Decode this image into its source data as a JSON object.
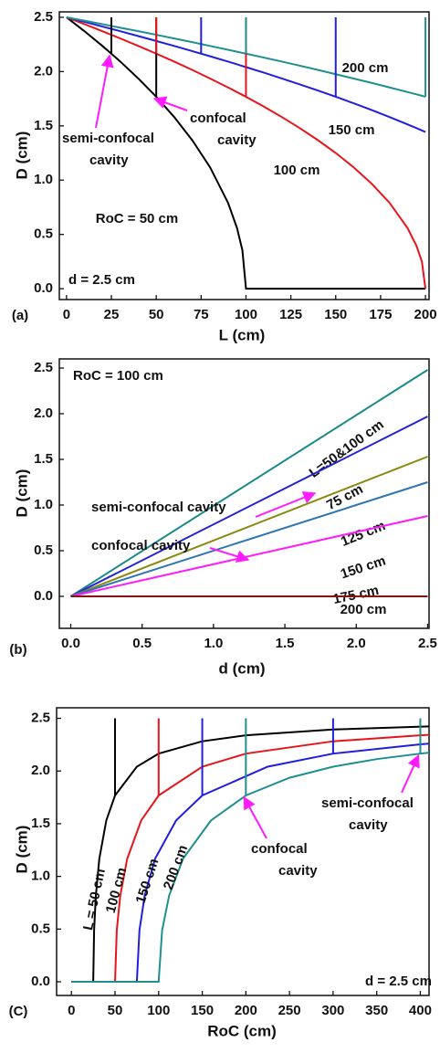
{
  "chart_data": [
    {
      "type": "line",
      "panel_label": "(a)",
      "x_label": "L (cm)",
      "y_label": "D (cm)",
      "annotations": [
        {
          "lines": [
            "semi-confocal",
            "cavity"
          ]
        },
        {
          "lines": [
            "confocal",
            "cavity"
          ]
        },
        {
          "lines": [
            "d = 2.5 cm"
          ]
        }
      ],
      "xlim": [
        -4,
        202
      ],
      "ylim": [
        -0.1,
        2.55
      ],
      "xticks": [
        0,
        25,
        50,
        75,
        100,
        125,
        150,
        175,
        200
      ],
      "yticks": [
        {
          "value": 0,
          "label": "0.0"
        },
        0.5,
        {
          "value": 1,
          "label": "1.0"
        },
        1.5,
        {
          "value": 2,
          "label": "2.0"
        },
        2.5
      ],
      "x": [
        0,
        10,
        20,
        30,
        40,
        50,
        60,
        70,
        80,
        90,
        95,
        98,
        100,
        110,
        120,
        130,
        140,
        150,
        160,
        170,
        180,
        190,
        195,
        198,
        200
      ],
      "series": [
        {
          "name": "RoC = 50 cm",
          "color": "#000000",
          "values": [
            2.5,
            2.372,
            2.236,
            2.092,
            1.936,
            1.768,
            1.581,
            1.369,
            1.118,
            0.791,
            0.559,
            0.354,
            0,
            0,
            0,
            0,
            0,
            0,
            0,
            0,
            0,
            0,
            0,
            0,
            0
          ]
        },
        {
          "name": "100 cm",
          "color": "#e8141b",
          "values": [
            2.5,
            2.437,
            2.372,
            2.305,
            2.236,
            2.165,
            2.092,
            2.016,
            1.936,
            1.854,
            1.811,
            1.785,
            1.768,
            1.677,
            1.581,
            1.479,
            1.369,
            1.25,
            1.118,
            0.968,
            0.791,
            0.559,
            0.395,
            0.25,
            0
          ]
        },
        {
          "name": "150 cm",
          "color": "#1f1fe0",
          "values": [
            2.5,
            2.458,
            2.415,
            2.372,
            2.327,
            2.282,
            2.236,
            2.189,
            2.141,
            2.092,
            2.067,
            2.051,
            2.041,
            1.99,
            1.936,
            1.882,
            1.826,
            1.768,
            1.708,
            1.646,
            1.581,
            1.514,
            1.479,
            1.458,
            1.443
          ]
        },
        {
          "name": "200 cm",
          "color": "#1f8f8f",
          "values": [
            2.5,
            2.469,
            2.437,
            2.404,
            2.372,
            2.339,
            2.305,
            2.271,
            2.236,
            2.201,
            2.183,
            2.172,
            2.165,
            2.129,
            2.092,
            2.054,
            2.016,
            1.976,
            1.936,
            1.896,
            1.854,
            1.811,
            1.79,
            1.777,
            1.768
          ]
        }
      ],
      "markers": [
        {
          "x": 25,
          "from": 2.165,
          "to": 2.5,
          "color": "#000000"
        },
        {
          "x": 50,
          "from": 1.768,
          "to": 2.5,
          "color": "#000000"
        },
        {
          "x": 50,
          "from": 2.165,
          "to": 2.5,
          "color": "#e8141b"
        },
        {
          "x": 100,
          "from": 1.768,
          "to": 2.5,
          "color": "#e8141b"
        },
        {
          "x": 75,
          "from": 2.165,
          "to": 2.5,
          "color": "#1f1fe0"
        },
        {
          "x": 150,
          "from": 1.768,
          "to": 2.5,
          "color": "#1f1fe0"
        },
        {
          "x": 100,
          "from": 2.165,
          "to": 2.5,
          "color": "#1f8f8f"
        },
        {
          "x": 200,
          "from": 1.768,
          "to": 2.5,
          "color": "#1f8f8f"
        }
      ]
    },
    {
      "type": "line",
      "panel_label": "(b)",
      "x_label": "d (cm)",
      "y_label": "D (cm)",
      "annotations": [
        {
          "lines": [
            "RoC = 100 cm"
          ]
        },
        {
          "lines": [
            "semi-confocal cavity"
          ]
        },
        {
          "lines": [
            "confocal cavity"
          ]
        }
      ],
      "xlim": [
        -0.08,
        2.51
      ],
      "ylim": [
        -0.35,
        2.6
      ],
      "xticks": [
        {
          "value": 0,
          "label": "0.0"
        },
        0.5,
        {
          "value": 1,
          "label": "1.0"
        },
        1.5,
        {
          "value": 2,
          "label": "2.0"
        },
        2.5
      ],
      "yticks": [
        {
          "value": 0,
          "label": "0.0"
        },
        0.5,
        {
          "value": 1,
          "label": "1.0"
        },
        1.5,
        {
          "value": 2,
          "label": "2.0"
        },
        2.5
      ],
      "x": [
        0,
        2.5
      ],
      "series": [
        {
          "name": "L=50&100 cm",
          "color": "#1b8a8a",
          "values": [
            0,
            2.48
          ]
        },
        {
          "name": "75 cm",
          "color": "#2121d8",
          "values": [
            0,
            1.97
          ]
        },
        {
          "name": "125 cm",
          "color": "#8a8a10",
          "values": [
            0,
            1.53
          ]
        },
        {
          "name": "150 cm",
          "color": "#2f76b0",
          "values": [
            0,
            1.25
          ]
        },
        {
          "name": "175 cm",
          "color": "#ff1aff",
          "values": [
            0,
            0.88
          ]
        },
        {
          "name": "200 cm",
          "color": "#8b1010",
          "values": [
            0,
            0
          ]
        }
      ]
    },
    {
      "type": "line",
      "panel_label": "(C)",
      "x_label": "RoC (cm)",
      "y_label": "D (cm)",
      "annotations": [
        {
          "lines": [
            "confocal",
            "cavity"
          ]
        },
        {
          "lines": [
            "semi-confocal",
            "cavity"
          ]
        },
        {
          "lines": [
            "d = 2.5 cm"
          ]
        }
      ],
      "xlim": [
        -17,
        410
      ],
      "ylim": [
        -0.13,
        2.6
      ],
      "xticks": [
        0,
        50,
        100,
        150,
        200,
        250,
        300,
        350,
        400
      ],
      "yticks": [
        {
          "value": 0,
          "label": "0.0"
        },
        0.5,
        {
          "value": 1,
          "label": "1.0"
        },
        1.5,
        {
          "value": 2,
          "label": "2.0"
        },
        2.5
      ],
      "series": [
        {
          "name": "L = 50 cm",
          "color": "#000000",
          "x": [
            0,
            25,
            26,
            28,
            32,
            40,
            50,
            75,
            100,
            150,
            200,
            300,
            410
          ],
          "values": [
            0,
            0,
            0.49,
            0.818,
            1.169,
            1.531,
            1.768,
            2.041,
            2.165,
            2.282,
            2.339,
            2.394,
            2.423
          ]
        },
        {
          "name": "100 cm",
          "color": "#e8141b",
          "x": [
            0,
            50,
            52,
            56,
            64,
            80,
            100,
            150,
            200,
            300,
            400,
            410
          ],
          "values": [
            0,
            0,
            0.49,
            0.818,
            1.169,
            1.531,
            1.768,
            2.041,
            2.165,
            2.282,
            2.339,
            2.343
          ]
        },
        {
          "name": "150 cm",
          "color": "#1f1fe0",
          "x": [
            0,
            75,
            78,
            84,
            96,
            120,
            150,
            225,
            300,
            400,
            410
          ],
          "values": [
            0,
            0,
            0.49,
            0.818,
            1.169,
            1.531,
            1.768,
            2.041,
            2.165,
            2.253,
            2.26
          ]
        },
        {
          "name": "200 cm",
          "color": "#1f8f8f",
          "x": [
            0,
            100,
            104,
            112,
            128,
            160,
            200,
            250,
            300,
            350,
            400,
            410
          ],
          "values": [
            0,
            0,
            0.49,
            0.818,
            1.169,
            1.531,
            1.768,
            1.936,
            2.041,
            2.113,
            2.165,
            2.174
          ]
        }
      ],
      "markers": [
        {
          "x": 50,
          "from": 1.768,
          "to": 2.5,
          "color": "#000000"
        },
        {
          "x": 100,
          "from": 1.768,
          "to": 2.5,
          "color": "#e8141b"
        },
        {
          "x": 150,
          "from": 1.768,
          "to": 2.5,
          "color": "#1f1fe0"
        },
        {
          "x": 200,
          "from": 1.768,
          "to": 2.5,
          "color": "#1f8f8f"
        },
        {
          "x": 300,
          "from": 2.165,
          "to": 2.5,
          "color": "#1f1fe0"
        },
        {
          "x": 400,
          "from": 2.165,
          "to": 2.5,
          "color": "#1f8f8f"
        }
      ]
    }
  ]
}
